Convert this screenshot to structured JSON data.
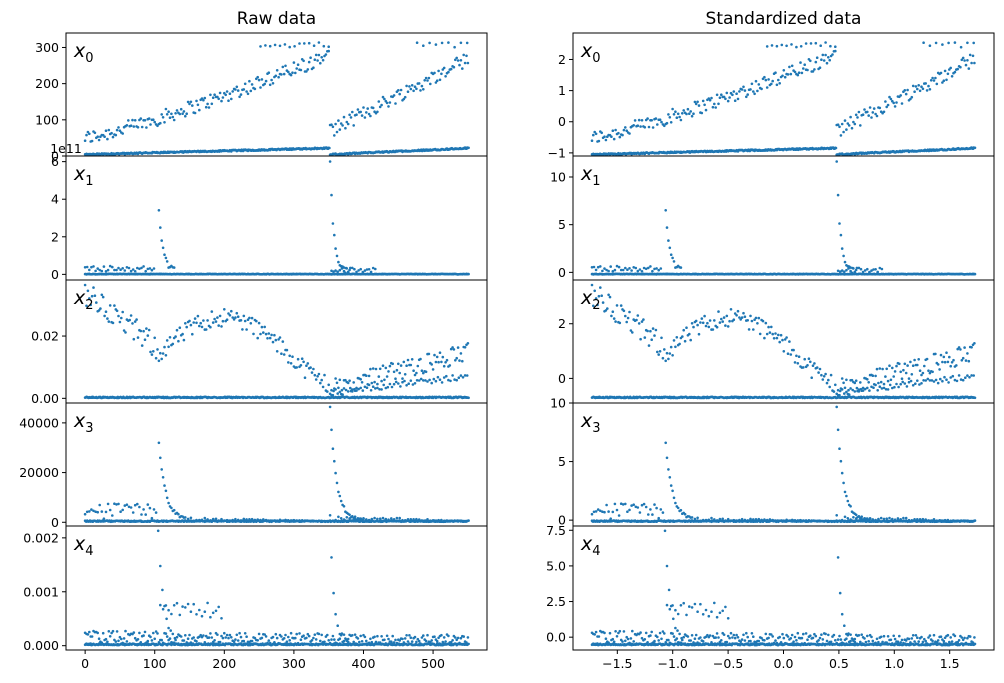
{
  "chart_data": [
    {
      "type": "scatter",
      "title": "Raw data",
      "xlim": [
        -27.5,
        577.5
      ],
      "xticks": [
        "0",
        "100",
        "200",
        "300",
        "400",
        "500"
      ],
      "panels": [
        {
          "label": "x",
          "sub": "0",
          "ylim": [
            0,
            340
          ],
          "yticks": [
            "0",
            "100",
            "200",
            "300"
          ],
          "offset_text": ""
        },
        {
          "label": "x",
          "sub": "1",
          "ylim": [
            -0.3,
            6.3
          ],
          "yticks": [
            "0",
            "2",
            "4",
            "6"
          ],
          "offset_text": "1e11"
        },
        {
          "label": "x",
          "sub": "2",
          "ylim": [
            -0.0015,
            0.038
          ],
          "yticks": [
            "0.00",
            "0.02"
          ],
          "offset_text": ""
        },
        {
          "label": "x",
          "sub": "3",
          "ylim": [
            -1500,
            48000
          ],
          "yticks": [
            "0",
            "20000",
            "40000"
          ],
          "offset_text": ""
        },
        {
          "label": "x",
          "sub": "4",
          "ylim": [
            -8e-05,
            0.00222
          ],
          "yticks": [
            "0.000",
            "0.001",
            "0.002"
          ],
          "offset_text": ""
        }
      ]
    },
    {
      "type": "scatter",
      "title": "Standardized data",
      "xlim": [
        -1.9,
        1.9
      ],
      "xticks": [
        "−1.5",
        "−1.0",
        "−0.5",
        "0.0",
        "0.5",
        "1.0",
        "1.5"
      ],
      "panels": [
        {
          "label": "x",
          "sub": "0",
          "ylim": [
            -1.1,
            2.85
          ],
          "yticks": [
            "−1",
            "0",
            "1",
            "2"
          ],
          "offset_text": ""
        },
        {
          "label": "x",
          "sub": "1",
          "ylim": [
            -0.8,
            12.2
          ],
          "yticks": [
            "0",
            "5",
            "10"
          ],
          "offset_text": ""
        },
        {
          "label": "x",
          "sub": "2",
          "ylim": [
            -0.9,
            3.6
          ],
          "yticks": [
            "0",
            "2"
          ],
          "offset_text": ""
        },
        {
          "label": "x",
          "sub": "3",
          "ylim": [
            -0.5,
            10.0
          ],
          "yticks": [
            "0",
            "5",
            "10"
          ],
          "offset_text": ""
        },
        {
          "label": "x",
          "sub": "4",
          "ylim": [
            -0.9,
            7.8
          ],
          "yticks": [
            "0.0",
            "2.5",
            "5.0",
            "7.5"
          ],
          "offset_text": ""
        }
      ]
    }
  ],
  "colors": {
    "marker": "#1f77b4",
    "axes": "#000000"
  }
}
